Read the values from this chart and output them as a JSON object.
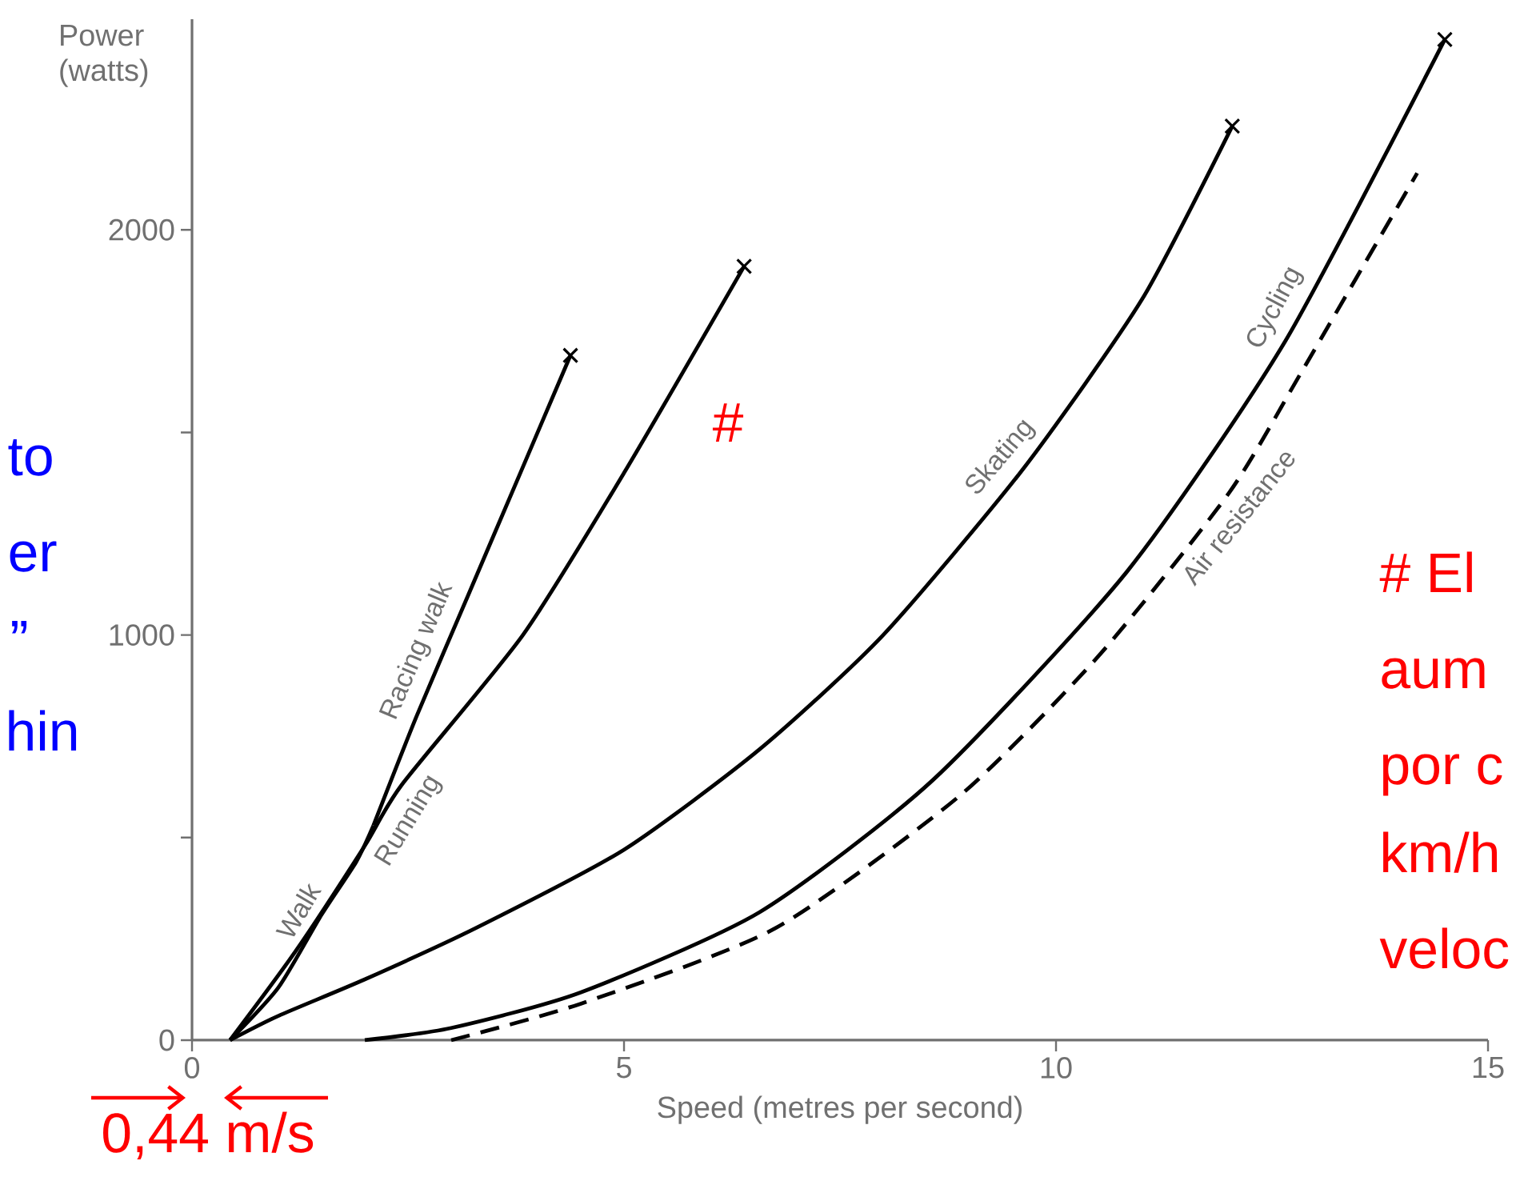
{
  "chart_data": {
    "type": "line",
    "xlabel": "Speed (metres per second)",
    "ylabel": "Power (watts)",
    "xlim": [
      0,
      15
    ],
    "ylim": [
      0,
      2520
    ],
    "xticks": [
      0,
      5,
      10,
      15
    ],
    "yticks": [
      0,
      {
        "value": 500,
        "label": null
      },
      1000,
      {
        "value": 1500,
        "label": null
      },
      2000
    ],
    "series": [
      {
        "name": "Walk",
        "color": "#000000",
        "line_style": "solid",
        "x": [
          0.44,
          1.0,
          1.5,
          1.9,
          2.1
        ],
        "values": [
          0,
          130,
          310,
          440,
          530
        ]
      },
      {
        "name": "Racing walk",
        "color": "#000000",
        "line_style": "solid",
        "x": [
          2.1,
          2.6,
          3.2,
          3.8,
          4.38
        ],
        "values": [
          530,
          800,
          1100,
          1400,
          1690
        ]
      },
      {
        "name": "Running",
        "color": "#000000",
        "line_style": "solid",
        "x": [
          0.44,
          1.2,
          2.0,
          2.43,
          3.83,
          5.0,
          6.39
        ],
        "values": [
          0,
          220,
          480,
          631,
          1000,
          1400,
          1910
        ]
      },
      {
        "name": "Skating",
        "color": "#000000",
        "line_style": "solid",
        "x": [
          0.44,
          1.0,
          2.0,
          3.28,
          5.0,
          6.57,
          8.0,
          9.62,
          11.0,
          12.04
        ],
        "values": [
          0,
          60,
          150,
          276,
          470,
          718,
          1000,
          1410,
          1830,
          2256
        ]
      },
      {
        "name": "Cycling",
        "color": "#000000",
        "line_style": "solid",
        "x": [
          2.0,
          3.0,
          4.5,
          6.57,
          8.58,
          10.82,
          12.65,
          14.5
        ],
        "values": [
          0,
          30,
          118,
          316,
          643,
          1156,
          1724,
          2470
        ]
      },
      {
        "name": "Air resistance",
        "color": "#000000",
        "line_style": "dashed",
        "x": [
          3.0,
          4.5,
          6.75,
          8.89,
          10.5,
          12.0,
          12.83,
          14.18
        ],
        "values": [
          0,
          90,
          276,
          604,
          950,
          1350,
          1645,
          2140
        ]
      },
      {
        "type": "scatter",
        "color": "#000000",
        "marker": "cross",
        "x": [
          4.38,
          6.39,
          12.04,
          14.5
        ],
        "values": [
          1690,
          1910,
          2256,
          2470
        ]
      }
    ],
    "annotations": [
      "#",
      "0,44 m/s",
      "to",
      "er",
      "”",
      "hin",
      "# El",
      "aum",
      "por c",
      "km/h",
      "veloc"
    ]
  }
}
